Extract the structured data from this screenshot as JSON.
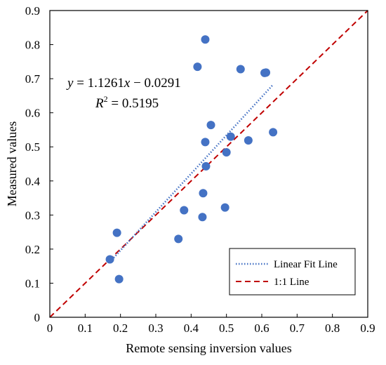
{
  "chart_data": {
    "type": "scatter",
    "title": "",
    "xlabel": "Remote sensing inversion values",
    "ylabel": "Measured values",
    "xlim": [
      0,
      0.9
    ],
    "ylim": [
      0,
      0.9
    ],
    "xticks": [
      "0",
      "0.1",
      "0.2",
      "0.3",
      "0.4",
      "0.5",
      "0.6",
      "0.7",
      "0.8",
      "0.9"
    ],
    "yticks": [
      "0",
      "0.1",
      "0.2",
      "0.3",
      "0.4",
      "0.5",
      "0.6",
      "0.7",
      "0.8",
      "0.9"
    ],
    "grid": false,
    "legend_position": "bottom-right",
    "equation": {
      "y_prefix": "y",
      "equals": " = 1.1261",
      "x_var": "x",
      "rest": " − 0.0291",
      "r2_label": "R",
      "r2_sup": "2",
      "r2_value": " = 0.5195"
    },
    "legend": [
      {
        "label": "Linear Fit Line",
        "color": "#4472C4",
        "style": "dotted"
      },
      {
        "label": "1:1 Line",
        "color": "#C00000",
        "style": "dashed"
      }
    ],
    "fit_line": {
      "slope": 1.1261,
      "intercept": -0.0291,
      "x_range": [
        0.17,
        0.63
      ],
      "color": "#4472C4"
    },
    "identity_line": {
      "x_range": [
        0,
        0.9
      ],
      "color": "#C00000"
    },
    "points_color": "#4472C4",
    "points": [
      {
        "x": 0.44,
        "y": 0.815
      },
      {
        "x": 0.418,
        "y": 0.735
      },
      {
        "x": 0.54,
        "y": 0.728
      },
      {
        "x": 0.608,
        "y": 0.717
      },
      {
        "x": 0.612,
        "y": 0.718
      },
      {
        "x": 0.456,
        "y": 0.564
      },
      {
        "x": 0.632,
        "y": 0.543
      },
      {
        "x": 0.512,
        "y": 0.53
      },
      {
        "x": 0.44,
        "y": 0.514
      },
      {
        "x": 0.562,
        "y": 0.519
      },
      {
        "x": 0.5,
        "y": 0.484
      },
      {
        "x": 0.442,
        "y": 0.443
      },
      {
        "x": 0.434,
        "y": 0.364
      },
      {
        "x": 0.38,
        "y": 0.314
      },
      {
        "x": 0.496,
        "y": 0.322
      },
      {
        "x": 0.432,
        "y": 0.294
      },
      {
        "x": 0.364,
        "y": 0.23
      },
      {
        "x": 0.19,
        "y": 0.248
      },
      {
        "x": 0.17,
        "y": 0.17
      },
      {
        "x": 0.196,
        "y": 0.112
      }
    ]
  }
}
